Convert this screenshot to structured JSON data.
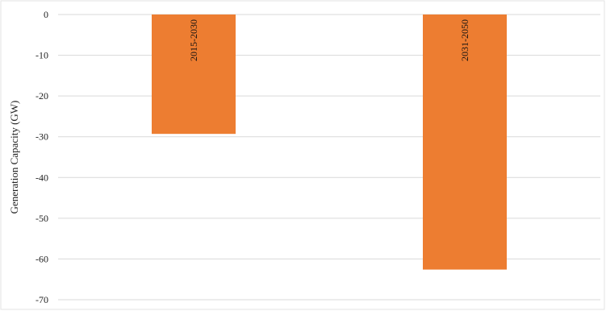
{
  "chart_data": {
    "type": "bar",
    "categories": [
      "2015-2030",
      "2031-2050"
    ],
    "values": [
      -29.3,
      -62.6
    ],
    "title": "",
    "xlabel": "",
    "ylabel": "Generation Capacity (GW)",
    "ylim": [
      -70,
      0
    ],
    "yticks": [
      0,
      -10,
      -20,
      -30,
      -40,
      -50,
      -60,
      -70
    ],
    "grid": true,
    "bar_color": "#ED7D31",
    "grid_color": "#D9D9D9",
    "bar_labels_inside": true
  }
}
